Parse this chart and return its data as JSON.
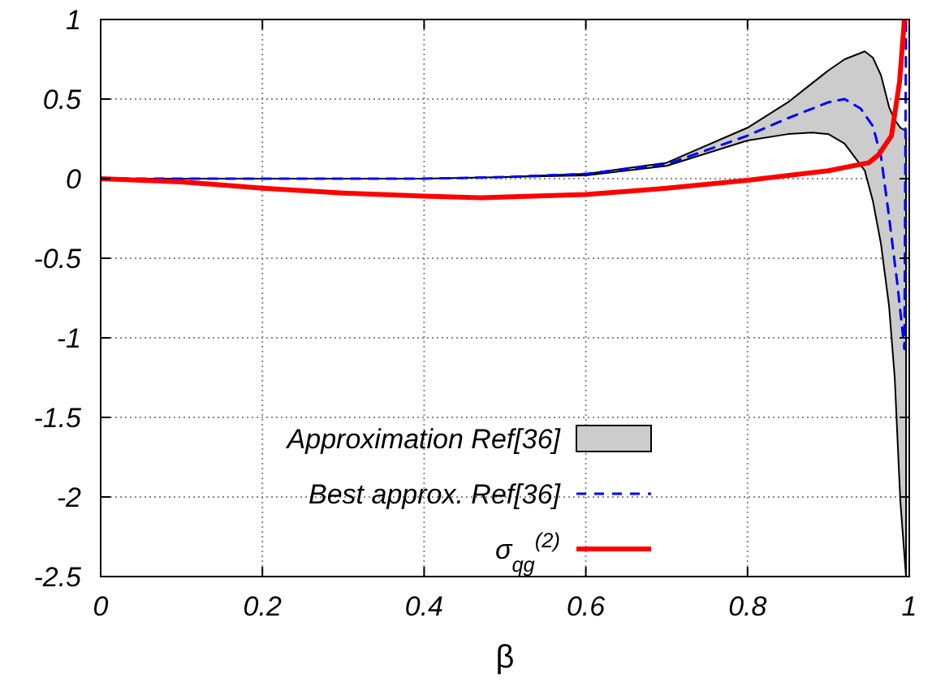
{
  "chart_data": {
    "type": "line",
    "xlabel": "β",
    "xlim": [
      0,
      1
    ],
    "ylim": [
      -2.5,
      1
    ],
    "xticks": [
      0,
      0.2,
      0.4,
      0.6,
      0.8,
      1
    ],
    "yticks": [
      1,
      0.5,
      0,
      -0.5,
      -1,
      -1.5,
      -2,
      -2.5
    ],
    "grid": true,
    "legend": "bottom left",
    "series": [
      {
        "name": "Approximation Ref[36]",
        "color": "#cccccc",
        "x": [
          0,
          0.1,
          0.2,
          0.3,
          0.4,
          0.5,
          0.6,
          0.7,
          0.8,
          0.85,
          0.88,
          0.9,
          0.92,
          0.945,
          0.955,
          0.965,
          0.975,
          0.982,
          0.989,
          0.996,
          0.996
        ],
        "values": [
          null,
          null,
          null,
          null,
          null,
          null,
          null,
          null,
          null,
          null,
          null,
          null,
          null,
          null,
          null,
          null,
          null,
          null,
          null,
          null,
          null
        ],
        "upper": [
          0,
          0,
          0,
          0,
          0,
          0.01,
          0.03,
          0.1,
          0.32,
          0.48,
          0.6,
          0.68,
          0.75,
          0.8,
          0.76,
          0.65,
          0.45,
          0.37,
          0.32,
          0.3,
          -2.5
        ],
        "lower": [
          0,
          0,
          0,
          0,
          0,
          0.01,
          0.02,
          0.08,
          0.24,
          0.28,
          0.29,
          0.28,
          0.22,
          0.05,
          -0.14,
          -0.41,
          -0.8,
          -1.25,
          -2.03,
          -2.5,
          -2.5
        ]
      },
      {
        "name": "Best approx. Ref[36]",
        "color": "#0000ff",
        "line_style": "dashed",
        "x": [
          0,
          0.1,
          0.2,
          0.3,
          0.4,
          0.5,
          0.6,
          0.7,
          0.8,
          0.85,
          0.9,
          0.92,
          0.94,
          0.955,
          0.965,
          0.975,
          0.985,
          0.994,
          0.996
        ],
        "values": [
          0,
          0,
          0,
          0,
          0,
          0.01,
          0.03,
          0.09,
          0.27,
          0.38,
          0.48,
          0.5,
          0.44,
          0.33,
          0.14,
          -0.24,
          -0.65,
          -1.07,
          1
        ]
      },
      {
        "name": "σ$_{qg}$$^{(2)}$",
        "color": "#ff0000",
        "line_style": "solid",
        "x": [
          0,
          0.1,
          0.2,
          0.3,
          0.4,
          0.47,
          0.6,
          0.7,
          0.8,
          0.9,
          0.95,
          0.962,
          0.978,
          0.988,
          0.994
        ],
        "values": [
          0,
          -0.02,
          -0.06,
          -0.09,
          -0.11,
          -0.12,
          -0.1,
          -0.06,
          -0.01,
          0.05,
          0.1,
          0.15,
          0.27,
          0.61,
          1
        ]
      }
    ]
  }
}
